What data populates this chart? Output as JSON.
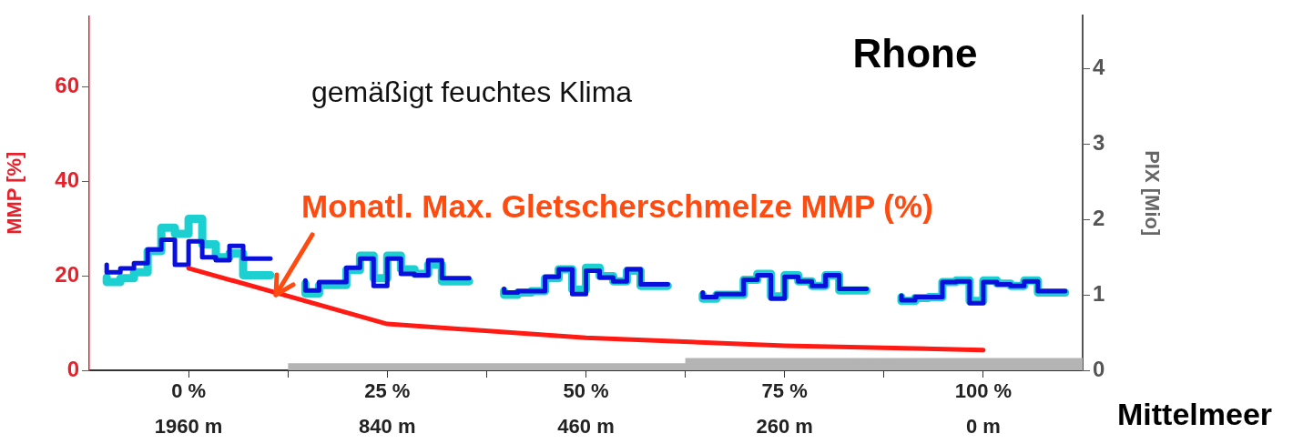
{
  "chart_data": {
    "type": "line",
    "ylabel": "MMP [%]",
    "y2label": "PIX [Mio]",
    "xlim": [
      -12.5,
      112.5
    ],
    "xticks": [
      {
        "value": 0,
        "label": "0 %"
      },
      {
        "value": 12.5,
        "label": null
      },
      {
        "value": 25,
        "label": "25 %"
      },
      {
        "value": 37.5,
        "label": null
      },
      {
        "value": 50,
        "label": "50 %"
      },
      {
        "value": 62.5,
        "label": null
      },
      {
        "value": 75,
        "label": "75 %"
      },
      {
        "value": 87.5,
        "label": null
      },
      {
        "value": 100,
        "label": "100 %"
      }
    ],
    "ylim": [
      0,
      75
    ],
    "yticks": [
      0,
      20,
      40,
      60
    ],
    "y2lim": [
      0,
      4.7
    ],
    "y2ticks": [
      0,
      1,
      2,
      3,
      4
    ],
    "annotations": [
      "gemäßigt feuchtes Klima",
      "Rhone",
      {
        "text": "Monatl. Max. Gletscherschmelze MMP (%)",
        "x": 11,
        "y": 16
      },
      "Mittelmeer",
      "1960 m",
      "840 m",
      "460 m",
      "260 m",
      "0 m"
    ],
    "series": [
      {
        "type": "area",
        "axis": "y",
        "color": "#b4b4b4",
        "x": [
          12.5,
          62.5,
          62.5,
          112.5
        ],
        "values": [
          1.5,
          1.5,
          2.6,
          2.6
        ]
      },
      {
        "type": "step",
        "axis": "y2",
        "color": "#1ccfd0",
        "x": [
          -10.3,
          -8.58,
          -6.87,
          -5.15,
          -3.43,
          -1.72,
          0,
          1.72,
          3.43,
          5.15,
          6.87,
          8.58,
          10.3,
          12.5,
          14.7,
          16.42,
          18.13,
          19.85,
          21.57,
          23.28,
          25,
          26.72,
          28.43,
          30.15,
          31.87,
          33.58,
          35.3,
          37.5,
          39.7,
          41.42,
          43.13,
          44.85,
          46.57,
          48.28,
          50,
          51.72,
          53.43,
          55.15,
          56.87,
          58.58,
          60.3,
          62.5,
          64.7,
          66.42,
          68.13,
          69.85,
          71.57,
          73.28,
          75,
          76.72,
          78.43,
          80.15,
          81.87,
          83.58,
          85.3,
          87.5,
          89.7,
          91.42,
          93.13,
          94.85,
          96.57,
          98.28,
          100,
          101.72,
          103.43,
          105.15,
          106.87,
          108.58,
          110.3
        ],
        "values": [
          1.23,
          1.17,
          1.22,
          1.3,
          1.58,
          1.89,
          1.81,
          2.01,
          1.67,
          1.5,
          1.55,
          1.26,
          1.26,
          null,
          1.15,
          1.02,
          1.13,
          1.13,
          1.33,
          1.52,
          1.22,
          1.52,
          1.34,
          1.28,
          1.4,
          1.18,
          1.18,
          null,
          1.05,
          1.0,
          1.03,
          1.05,
          1.22,
          1.34,
          1.07,
          1.36,
          1.25,
          1.18,
          1.32,
          1.12,
          1.12,
          null,
          1.0,
          0.95,
          1.0,
          1.0,
          1.2,
          1.28,
          0.98,
          1.26,
          1.18,
          1.12,
          1.26,
          1.06,
          1.06,
          null,
          0.97,
          0.92,
          0.96,
          0.97,
          1.17,
          1.19,
          0.92,
          1.19,
          1.15,
          1.12,
          1.19,
          1.03,
          1.03
        ]
      },
      {
        "type": "step",
        "axis": "y2",
        "color": "#0a10dc",
        "x": [
          -10.3,
          -8.58,
          -6.87,
          -5.15,
          -3.43,
          -1.72,
          0,
          1.72,
          3.43,
          5.15,
          6.87,
          8.58,
          10.3,
          12.5,
          14.7,
          16.42,
          18.13,
          19.85,
          21.57,
          23.28,
          25,
          26.72,
          28.43,
          30.15,
          31.87,
          33.58,
          35.3,
          37.5,
          39.7,
          41.42,
          43.13,
          44.85,
          46.57,
          48.28,
          50,
          51.72,
          53.43,
          55.15,
          56.87,
          58.58,
          60.3,
          62.5,
          64.7,
          66.42,
          68.13,
          69.85,
          71.57,
          73.28,
          75,
          76.72,
          78.43,
          80.15,
          81.87,
          83.58,
          85.3,
          87.5,
          89.7,
          91.42,
          93.13,
          94.85,
          96.57,
          98.28,
          100,
          101.72,
          103.43,
          105.15,
          106.87,
          108.58,
          110.3
        ],
        "values": [
          1.4,
          1.3,
          1.35,
          1.42,
          1.6,
          1.73,
          1.4,
          1.71,
          1.5,
          1.46,
          1.65,
          1.48,
          1.48,
          null,
          1.19,
          1.06,
          1.17,
          1.17,
          1.36,
          1.48,
          1.12,
          1.48,
          1.28,
          1.26,
          1.46,
          1.22,
          1.22,
          null,
          1.08,
          1.03,
          1.05,
          1.05,
          1.24,
          1.34,
          1.01,
          1.32,
          1.23,
          1.18,
          1.34,
          1.14,
          1.14,
          null,
          1.03,
          0.97,
          1.01,
          1.01,
          1.2,
          1.26,
          0.95,
          1.24,
          1.18,
          1.12,
          1.26,
          1.08,
          1.08,
          null,
          0.99,
          0.93,
          0.97,
          0.97,
          1.17,
          1.18,
          0.89,
          1.17,
          1.14,
          1.12,
          1.18,
          1.05,
          1.05
        ]
      },
      {
        "type": "line",
        "axis": "y",
        "color": "#ff1a14",
        "x": [
          0,
          25,
          50,
          75,
          100
        ],
        "values": [
          21.6,
          9.8,
          6.9,
          5.2,
          4.3
        ]
      }
    ]
  }
}
